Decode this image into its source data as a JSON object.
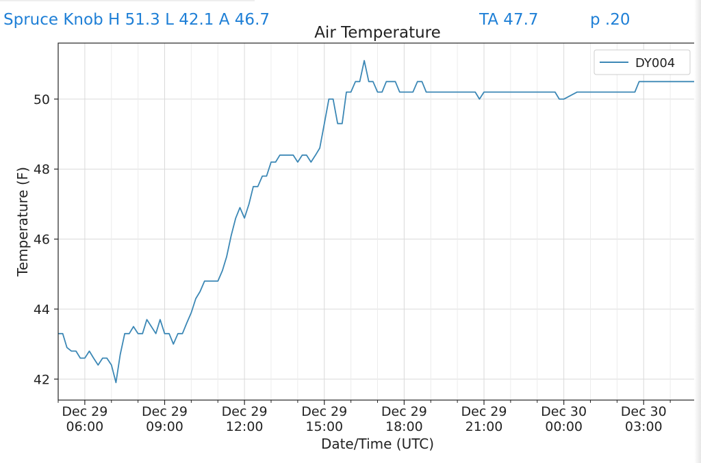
{
  "header": {
    "station_summary": "Spruce Knob H 51.3 L 42.1 A 46.7",
    "ta": "TA 47.7",
    "p": "p .20"
  },
  "colors": {
    "header_text": "#1e7fd6",
    "series": "#3b87b5",
    "grid": "#d9d9d9"
  },
  "chart_data": {
    "type": "line",
    "title": "Air Temperature",
    "xlabel": "Date/Time (UTC)",
    "ylabel": "Temperature (F)",
    "x_range": [
      "Dec 29 05:00",
      "Dec 30 05:00"
    ],
    "ylim": [
      41.4,
      51.6
    ],
    "yticks": [
      42,
      44,
      46,
      48,
      50
    ],
    "xticks": [
      {
        "t": 1,
        "date": "Dec 29",
        "time": "06:00"
      },
      {
        "t": 4,
        "date": "Dec 29",
        "time": "09:00"
      },
      {
        "t": 7,
        "date": "Dec 29",
        "time": "12:00"
      },
      {
        "t": 10,
        "date": "Dec 29",
        "time": "15:00"
      },
      {
        "t": 13,
        "date": "Dec 29",
        "time": "18:00"
      },
      {
        "t": 16,
        "date": "Dec 29",
        "time": "21:00"
      },
      {
        "t": 19,
        "date": "Dec 30",
        "time": "00:00"
      },
      {
        "t": 22,
        "date": "Dec 30",
        "time": "03:00"
      }
    ],
    "grid": true,
    "legend_position": "top-right",
    "series": [
      {
        "name": "DY004",
        "x_hours_since_dec29_0500": [
          0.0,
          0.17,
          0.33,
          0.5,
          0.67,
          0.83,
          1.0,
          1.17,
          1.33,
          1.5,
          1.67,
          1.83,
          2.0,
          2.17,
          2.33,
          2.5,
          2.67,
          2.83,
          3.0,
          3.17,
          3.33,
          3.5,
          3.67,
          3.83,
          4.0,
          4.17,
          4.33,
          4.5,
          4.67,
          4.83,
          5.0,
          5.17,
          5.33,
          5.5,
          5.67,
          5.83,
          6.0,
          6.17,
          6.33,
          6.5,
          6.67,
          6.83,
          7.0,
          7.17,
          7.33,
          7.5,
          7.67,
          7.83,
          8.0,
          8.17,
          8.33,
          8.5,
          8.67,
          8.83,
          9.0,
          9.17,
          9.33,
          9.5,
          9.67,
          9.83,
          10.0,
          10.17,
          10.33,
          10.5,
          10.67,
          10.83,
          11.0,
          11.17,
          11.33,
          11.5,
          11.67,
          11.83,
          12.0,
          12.17,
          12.33,
          12.5,
          12.67,
          12.83,
          13.0,
          13.17,
          13.33,
          13.5,
          13.67,
          13.83,
          14.0,
          14.17,
          14.33,
          14.5,
          14.67,
          14.83,
          15.0,
          15.17,
          15.33,
          15.5,
          15.67,
          15.83,
          16.0,
          16.17,
          16.33,
          16.5,
          16.67,
          17.5,
          18.5,
          18.67,
          18.83,
          19.0,
          19.5,
          20.0,
          20.5,
          21.0,
          21.5,
          21.67,
          21.83,
          22.0,
          22.5,
          22.67,
          22.83,
          23.0,
          23.5,
          24.0
        ],
        "y": [
          43.3,
          43.3,
          42.9,
          42.8,
          42.8,
          42.6,
          42.6,
          42.8,
          42.6,
          42.4,
          42.6,
          42.6,
          42.4,
          41.9,
          42.7,
          43.3,
          43.3,
          43.5,
          43.3,
          43.3,
          43.7,
          43.5,
          43.3,
          43.7,
          43.3,
          43.3,
          43.0,
          43.3,
          43.3,
          43.6,
          43.9,
          44.3,
          44.5,
          44.8,
          44.8,
          44.8,
          44.8,
          45.1,
          45.5,
          46.1,
          46.6,
          46.9,
          46.6,
          47.0,
          47.5,
          47.5,
          47.8,
          47.8,
          48.2,
          48.2,
          48.4,
          48.4,
          48.4,
          48.4,
          48.2,
          48.4,
          48.4,
          48.2,
          48.4,
          48.6,
          49.3,
          50.0,
          50.0,
          49.3,
          49.3,
          50.2,
          50.2,
          50.5,
          50.5,
          51.1,
          50.5,
          50.5,
          50.2,
          50.2,
          50.5,
          50.5,
          50.5,
          50.2,
          50.2,
          50.2,
          50.2,
          50.5,
          50.5,
          50.2,
          50.2,
          50.2,
          50.2,
          50.2,
          50.2,
          50.2,
          50.2,
          50.2,
          50.2,
          50.2,
          50.2,
          50.0,
          50.2,
          50.2,
          50.2,
          50.2,
          50.2,
          50.2,
          50.2,
          50.2,
          50.0,
          50.0,
          50.2,
          50.2,
          50.2,
          50.2,
          50.2,
          50.2,
          50.5,
          50.5,
          50.5,
          50.5,
          50.5,
          50.5,
          50.5,
          50.5
        ]
      }
    ]
  }
}
